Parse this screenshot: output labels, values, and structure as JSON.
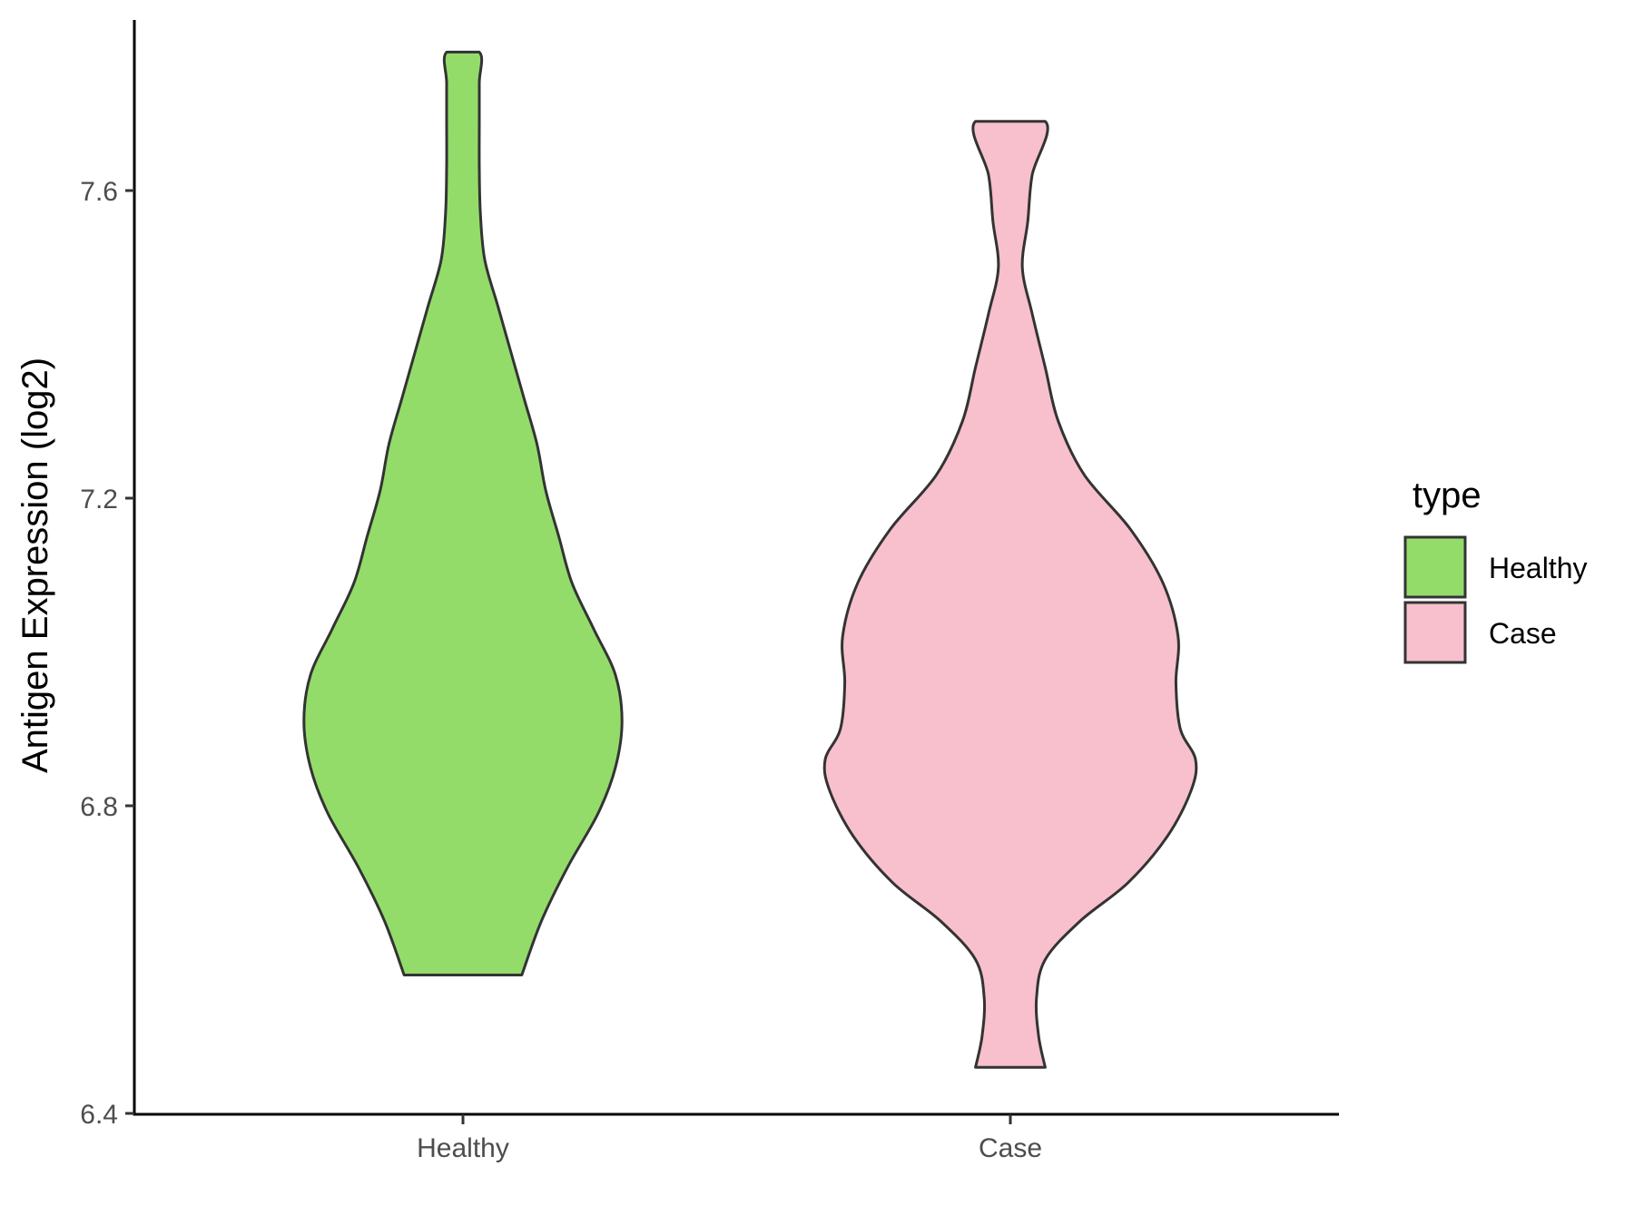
{
  "chart_data": {
    "type": "violin",
    "title": "",
    "xlabel": "",
    "ylabel": "Antigen Expression (log2)",
    "ylim": [
      6.4,
      7.82
    ],
    "yticks": [
      6.4,
      6.8,
      7.2,
      7.6
    ],
    "ytick_labels": [
      "6.4",
      "6.8",
      "7.2",
      "7.6"
    ],
    "categories": [
      "Healthy",
      "Case"
    ],
    "grid": false,
    "legend": {
      "title": "type",
      "placement": "right",
      "entries": [
        "Healthy",
        "Case"
      ]
    },
    "series": [
      {
        "name": "Healthy",
        "color": "#93dc6a",
        "min": 6.58,
        "max": 7.78,
        "profile_y": [
          6.58,
          6.65,
          6.72,
          6.79,
          6.85,
          6.91,
          6.97,
          7.03,
          7.09,
          7.15,
          7.21,
          7.27,
          7.33,
          7.39,
          7.45,
          7.51,
          7.57,
          7.63,
          7.69,
          7.74,
          7.78
        ],
        "profile_w": [
          0.27,
          0.36,
          0.48,
          0.62,
          0.7,
          0.73,
          0.7,
          0.6,
          0.5,
          0.44,
          0.38,
          0.34,
          0.28,
          0.22,
          0.16,
          0.1,
          0.08,
          0.075,
          0.075,
          0.075,
          0.075
        ]
      },
      {
        "name": "Case",
        "color": "#f7c0cc",
        "min": 6.46,
        "max": 7.69,
        "profile_y": [
          6.46,
          6.5,
          6.55,
          6.6,
          6.65,
          6.7,
          6.76,
          6.82,
          6.86,
          6.9,
          6.96,
          7.02,
          7.09,
          7.16,
          7.23,
          7.3,
          7.37,
          7.44,
          7.5,
          7.56,
          7.62,
          7.69
        ],
        "profile_w": [
          0.16,
          0.13,
          0.12,
          0.16,
          0.32,
          0.54,
          0.72,
          0.83,
          0.85,
          0.78,
          0.76,
          0.77,
          0.7,
          0.55,
          0.34,
          0.22,
          0.16,
          0.1,
          0.055,
          0.08,
          0.1,
          0.16
        ]
      }
    ]
  }
}
